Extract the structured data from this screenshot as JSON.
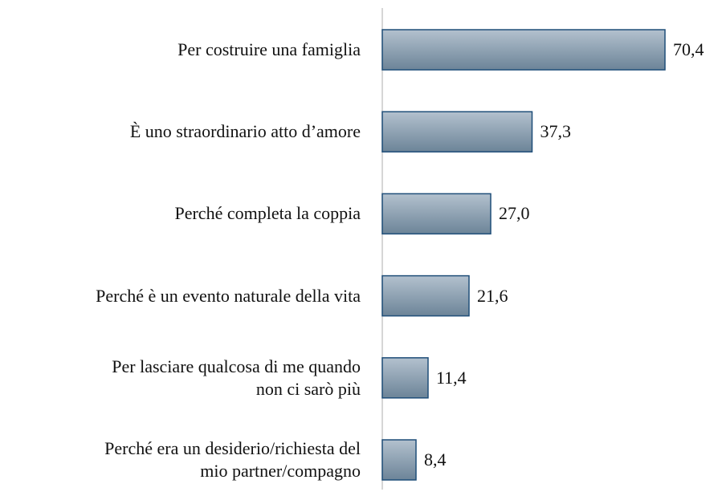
{
  "chart_data": {
    "type": "hbar",
    "categories": [
      "Per costruire una famiglia",
      "È uno straordinario atto d’amore",
      "Perché completa la coppia",
      "Perché è un evento naturale della vita",
      "Per lasciare qualcosa di me quando\nnon ci sarò più",
      "Perché era un desiderio/richiesta del\nmio partner/compagno"
    ],
    "values": [
      70.4,
      37.3,
      27.0,
      21.6,
      11.4,
      8.4
    ],
    "value_labels": [
      "70,4",
      "37,3",
      "27,0",
      "21,6",
      "11,4",
      "8,4"
    ],
    "color": "#8a9eb1",
    "edge_color": "#1f4e79"
  }
}
